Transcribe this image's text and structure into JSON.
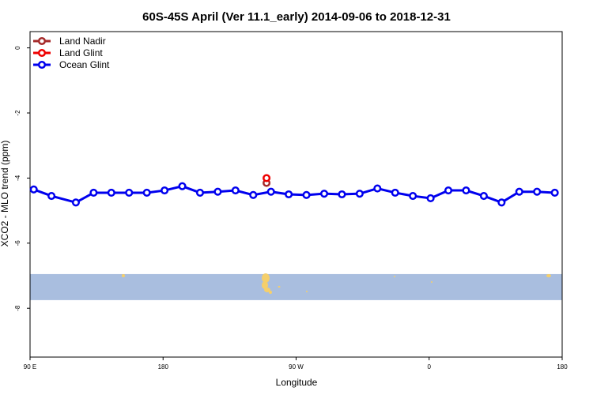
{
  "chart_data": {
    "type": "line",
    "title": "60S-45S April (Ver 11.1_early)   2014-09-06 to 2018-12-31",
    "xlabel": "Longitude",
    "ylabel": "XCO2 - MLO trend (ppm)",
    "xlim": [
      0,
      360
    ],
    "ylim": [
      -9.5,
      0.5
    ],
    "x_ticks": [
      {
        "value": 0,
        "label": "90 E"
      },
      {
        "value": 90,
        "label": "180"
      },
      {
        "value": 180,
        "label": "90 W"
      },
      {
        "value": 270,
        "label": "0"
      },
      {
        "value": 360,
        "label": "180"
      }
    ],
    "y_ticks": [
      {
        "value": 0,
        "label": "0"
      },
      {
        "value": -2,
        "label": "-2"
      },
      {
        "value": -4,
        "label": "-4"
      },
      {
        "value": -6,
        "label": "-6"
      },
      {
        "value": -8,
        "label": "-8"
      }
    ],
    "legend_position": "top-left",
    "grid": false,
    "map_band": {
      "y_top": -6.95,
      "y_bottom": -7.75,
      "ocean_color": "#a9bedf",
      "land_color": "#f5cf6b"
    },
    "series": [
      {
        "name": "Land Nadir",
        "color": "#a52a2a",
        "x": [
          160
        ],
        "y": [
          -4.15
        ]
      },
      {
        "name": "Land Glint",
        "color": "#ee0000",
        "x": [
          160
        ],
        "y": [
          -4.0
        ]
      },
      {
        "name": "Ocean Glint",
        "color": "#0000ee",
        "x": [
          2.5,
          14.5,
          31,
          43,
          55,
          67,
          79,
          91,
          103,
          115,
          127,
          139,
          151,
          163,
          175,
          187,
          199,
          211,
          223,
          235,
          247,
          259,
          271,
          283,
          295,
          307,
          319,
          331,
          343,
          355
        ],
        "y": [
          -4.35,
          -4.55,
          -4.75,
          -4.45,
          -4.45,
          -4.45,
          -4.45,
          -4.38,
          -4.25,
          -4.45,
          -4.42,
          -4.38,
          -4.52,
          -4.42,
          -4.5,
          -4.52,
          -4.48,
          -4.5,
          -4.48,
          -4.32,
          -4.45,
          -4.55,
          -4.62,
          -4.38,
          -4.38,
          -4.55,
          -4.75,
          -4.42,
          -4.42,
          -4.45
        ]
      }
    ]
  }
}
